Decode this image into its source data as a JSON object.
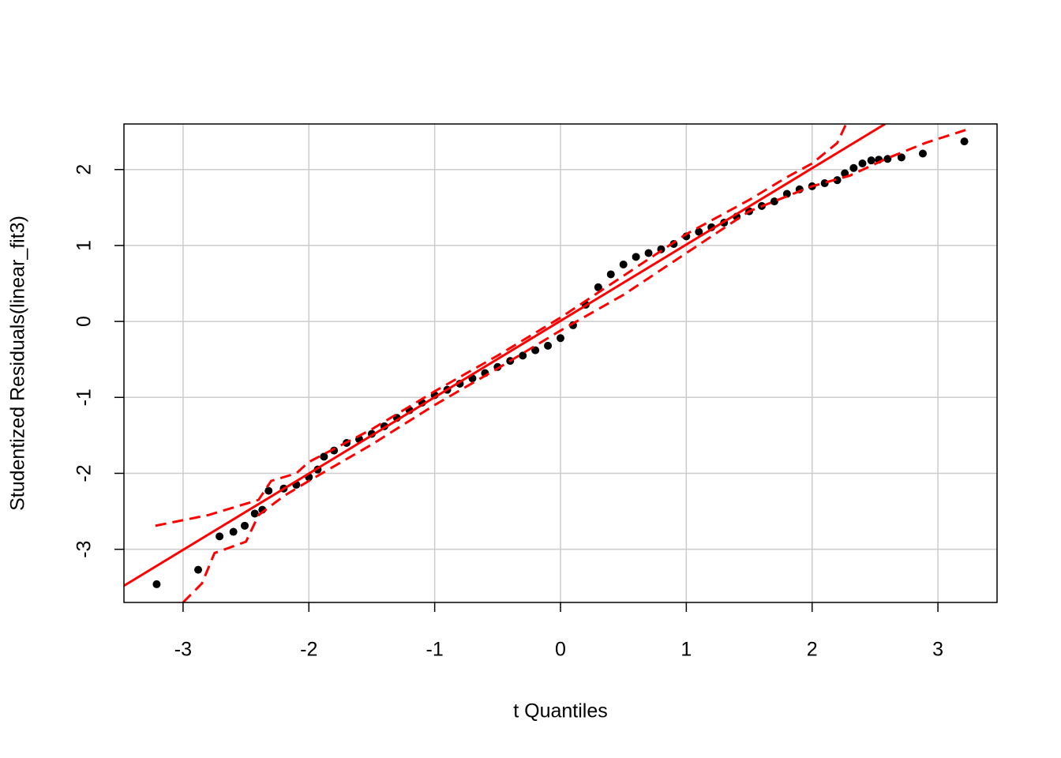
{
  "chart_data": {
    "type": "scatter",
    "xlabel": "t Quantiles",
    "ylabel": "Studentized Residuals(linear_fit3)",
    "xlim": [
      -3.47,
      3.47
    ],
    "ylim": [
      -3.7,
      2.6
    ],
    "xticks": [
      -3,
      -2,
      -1,
      0,
      1,
      2,
      3
    ],
    "yticks": [
      -3,
      -2,
      -1,
      0,
      1,
      2
    ],
    "grid": true,
    "grid_color": "#cccccc",
    "series": [
      {
        "style": "points",
        "color": "#000000",
        "x": [
          -3.21,
          -2.88,
          -2.71,
          -2.6,
          -2.51,
          -2.43,
          -2.37,
          -2.32,
          -2.2,
          -2.1,
          -2.0,
          -1.93,
          -1.88,
          -1.8,
          -1.7,
          -1.6,
          -1.5,
          -1.4,
          -1.3,
          -1.2,
          -1.1,
          -1.0,
          -0.9,
          -0.8,
          -0.7,
          -0.6,
          -0.5,
          -0.4,
          -0.3,
          -0.2,
          -0.1,
          0.0,
          0.1,
          0.2,
          0.3,
          0.4,
          0.5,
          0.6,
          0.7,
          0.8,
          0.9,
          1.0,
          1.1,
          1.2,
          1.3,
          1.4,
          1.5,
          1.6,
          1.7,
          1.8,
          1.9,
          2.0,
          2.1,
          2.2,
          2.26,
          2.33,
          2.4,
          2.47,
          2.53,
          2.6,
          2.71,
          2.88,
          3.21
        ],
        "values": [
          -3.46,
          -3.27,
          -2.83,
          -2.77,
          -2.69,
          -2.53,
          -2.48,
          -2.23,
          -2.2,
          -2.15,
          -2.05,
          -1.95,
          -1.78,
          -1.7,
          -1.6,
          -1.55,
          -1.48,
          -1.38,
          -1.27,
          -1.17,
          -1.07,
          -0.97,
          -0.9,
          -0.82,
          -0.75,
          -0.68,
          -0.6,
          -0.52,
          -0.45,
          -0.38,
          -0.32,
          -0.22,
          -0.05,
          0.22,
          0.45,
          0.62,
          0.75,
          0.85,
          0.9,
          0.95,
          1.02,
          1.12,
          1.18,
          1.24,
          1.3,
          1.38,
          1.45,
          1.52,
          1.58,
          1.68,
          1.74,
          1.78,
          1.82,
          1.86,
          1.95,
          2.02,
          2.08,
          2.12,
          2.13,
          2.14,
          2.16,
          2.21,
          2.37
        ]
      },
      {
        "style": "solid",
        "color": "#ff0000",
        "x": [
          -3.47,
          2.58
        ],
        "values": [
          -3.48,
          2.6
        ]
      },
      {
        "style": "dashed",
        "color": "#ff0000",
        "x": [
          -3.22,
          -2.8,
          -2.4,
          -2.3,
          -2.1,
          -2.0,
          -1.5,
          -1.0,
          -0.5,
          0.0,
          0.5,
          1.0,
          1.5,
          1.8,
          2.0,
          2.2,
          2.27
        ],
        "values": [
          -2.69,
          -2.55,
          -2.35,
          -2.1,
          -2.0,
          -1.85,
          -1.42,
          -0.92,
          -0.45,
          0.05,
          0.6,
          1.15,
          1.6,
          1.9,
          2.08,
          2.35,
          2.6
        ]
      },
      {
        "style": "dashed",
        "color": "#ff0000",
        "x": [
          -3.0,
          -2.85,
          -2.75,
          -2.5,
          -2.4,
          -2.2,
          -2.0,
          -1.5,
          -1.0,
          -0.5,
          0.0,
          0.5,
          1.0,
          1.5,
          2.0,
          2.3,
          2.6,
          2.9,
          3.22
        ],
        "values": [
          -3.7,
          -3.45,
          -3.05,
          -2.9,
          -2.55,
          -2.3,
          -2.1,
          -1.62,
          -1.1,
          -0.62,
          -0.12,
          0.35,
          0.9,
          1.45,
          1.78,
          1.92,
          2.15,
          2.35,
          2.52
        ]
      }
    ]
  }
}
